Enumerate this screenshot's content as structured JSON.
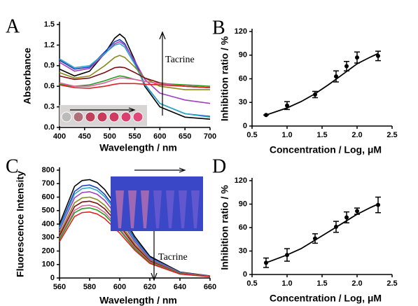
{
  "chart_data": [
    {
      "type": "line",
      "panel_label": "A",
      "xlabel": "Wavelength / nm",
      "ylabel": "Absorbance",
      "annotation": "Tacrine",
      "xlim": [
        400,
        700
      ],
      "xticks": [
        400,
        450,
        500,
        550,
        600,
        650,
        700
      ],
      "ylim": [
        0,
        1.5
      ],
      "yticks": [
        {
          "value": 0,
          "label": "0.0"
        },
        0.3,
        0.6,
        0.9,
        1.2,
        1.5
      ],
      "series": [
        {
          "color": "#000000",
          "x": [
            400,
            430,
            460,
            490,
            510,
            520,
            530,
            550,
            570,
            600,
            650,
            700
          ],
          "values": [
            0.85,
            0.75,
            0.82,
            1.08,
            1.3,
            1.36,
            1.3,
            0.98,
            0.6,
            0.3,
            0.15,
            0.12
          ]
        },
        {
          "color": "#1f3fbf",
          "x": [
            400,
            430,
            460,
            490,
            510,
            520,
            530,
            550,
            570,
            600,
            650,
            700
          ],
          "values": [
            0.98,
            0.85,
            0.88,
            1.1,
            1.25,
            1.28,
            1.22,
            0.95,
            0.63,
            0.35,
            0.2,
            0.16
          ]
        },
        {
          "color": "#a040c0",
          "x": [
            400,
            430,
            460,
            490,
            510,
            520,
            530,
            550,
            570,
            600,
            650,
            700
          ],
          "values": [
            0.95,
            0.82,
            0.86,
            1.07,
            1.22,
            1.25,
            1.2,
            0.97,
            0.7,
            0.5,
            0.4,
            0.35
          ]
        },
        {
          "color": "#2aa8c8",
          "x": [
            400,
            430,
            460,
            490,
            510,
            520,
            530,
            550,
            570,
            600,
            650,
            700
          ],
          "values": [
            1.0,
            0.87,
            0.9,
            1.08,
            1.2,
            1.22,
            1.17,
            0.92,
            0.62,
            0.35,
            0.2,
            0.15
          ]
        },
        {
          "color": "#8a8a20",
          "x": [
            400,
            430,
            460,
            490,
            510,
            520,
            530,
            550,
            570,
            600,
            650,
            700
          ],
          "values": [
            0.8,
            0.72,
            0.75,
            0.9,
            1.02,
            1.05,
            1.02,
            0.88,
            0.72,
            0.6,
            0.55,
            0.55
          ]
        },
        {
          "color": "#7a1010",
          "x": [
            400,
            430,
            460,
            490,
            510,
            520,
            530,
            550,
            570,
            600,
            650,
            700
          ],
          "values": [
            0.75,
            0.7,
            0.72,
            0.8,
            0.87,
            0.88,
            0.87,
            0.8,
            0.72,
            0.65,
            0.6,
            0.58
          ]
        },
        {
          "color": "#20a020",
          "x": [
            400,
            430,
            460,
            490,
            510,
            520,
            530,
            550,
            570,
            600,
            650,
            700
          ],
          "values": [
            0.63,
            0.6,
            0.62,
            0.68,
            0.73,
            0.75,
            0.74,
            0.7,
            0.67,
            0.64,
            0.62,
            0.6
          ]
        },
        {
          "color": "#e060a0",
          "x": [
            400,
            430,
            460,
            490,
            510,
            520,
            530,
            550,
            570,
            600,
            650,
            700
          ],
          "values": [
            0.65,
            0.6,
            0.6,
            0.65,
            0.7,
            0.72,
            0.72,
            0.7,
            0.67,
            0.64,
            0.6,
            0.58
          ]
        },
        {
          "color": "#e02020",
          "x": [
            400,
            430,
            460,
            490,
            510,
            520,
            530,
            550,
            570,
            600,
            650,
            700
          ],
          "values": [
            0.62,
            0.58,
            0.57,
            0.6,
            0.63,
            0.64,
            0.64,
            0.64,
            0.63,
            0.62,
            0.6,
            0.58
          ]
        }
      ]
    },
    {
      "type": "scatter",
      "panel_label": "B",
      "xlabel": "Concentration / Log, μM",
      "ylabel": "Inhibition ratio / %",
      "xlim": [
        0.5,
        2.5
      ],
      "xticks": [
        0.5,
        {
          "value": 1,
          "label": "1.0"
        },
        1.5,
        {
          "value": 2,
          "label": "2.0"
        },
        2.5
      ],
      "ylim": [
        0,
        120
      ],
      "yticks": [
        0,
        30,
        60,
        90,
        120
      ],
      "color": "#000000",
      "x": [
        0.7,
        1.0,
        1.4,
        1.7,
        1.85,
        2.0,
        2.3
      ],
      "values": [
        14,
        26,
        40,
        63,
        76,
        87,
        89
      ],
      "errors": [
        0,
        5,
        4,
        7,
        6,
        7,
        6
      ],
      "fit": {
        "x": [
          0.7,
          1.0,
          1.2,
          1.4,
          1.6,
          1.8,
          2.0,
          2.2,
          2.3
        ],
        "values": [
          14,
          23,
          31,
          41,
          53,
          66,
          79,
          88,
          92
        ]
      }
    },
    {
      "type": "line",
      "panel_label": "C",
      "xlabel": "Wavelength / nm",
      "ylabel": "Fluorescence Intensity",
      "annotation": "Tacrine",
      "xlim": [
        560,
        660
      ],
      "xticks": [
        560,
        580,
        600,
        620,
        640,
        660
      ],
      "ylim": [
        0,
        800
      ],
      "yticks": [
        0,
        100,
        200,
        300,
        400,
        500,
        600,
        700,
        800
      ],
      "series": [
        {
          "color": "#000000",
          "x": [
            560,
            570,
            575,
            580,
            585,
            590,
            600,
            610,
            620,
            640,
            660
          ],
          "values": [
            400,
            680,
            723,
            730,
            708,
            657,
            496,
            307,
            161,
            44,
            15
          ]
        },
        {
          "color": "#1f3fbf",
          "x": [
            560,
            570,
            575,
            580,
            585,
            590,
            600,
            610,
            620,
            640,
            660
          ],
          "values": [
            380,
            642,
            683,
            690,
            669,
            621,
            469,
            290,
            152,
            41,
            14
          ]
        },
        {
          "color": "#2aa8c8",
          "x": [
            560,
            570,
            575,
            580,
            585,
            590,
            600,
            610,
            620,
            640,
            660
          ],
          "values": [
            369,
            623,
            663,
            670,
            650,
            603,
            456,
            281,
            147,
            40,
            13
          ]
        },
        {
          "color": "#a040c0",
          "x": [
            560,
            570,
            575,
            580,
            585,
            590,
            600,
            610,
            620,
            640,
            660
          ],
          "values": [
            352,
            595,
            634,
            640,
            621,
            576,
            435,
            269,
            141,
            38,
            13
          ]
        },
        {
          "color": "#8a8a20",
          "x": [
            560,
            570,
            575,
            580,
            585,
            590,
            600,
            610,
            620,
            640,
            660
          ],
          "values": [
            330,
            558,
            594,
            600,
            582,
            540,
            408,
            252,
            132,
            36,
            12
          ]
        },
        {
          "color": "#7a1010",
          "x": [
            560,
            570,
            575,
            580,
            585,
            590,
            600,
            610,
            620,
            640,
            660
          ],
          "values": [
            314,
            530,
            564,
            570,
            553,
            513,
            388,
            239,
            125,
            34,
            11
          ]
        },
        {
          "color": "#e060a0",
          "x": [
            560,
            570,
            575,
            580,
            585,
            590,
            600,
            610,
            620,
            640,
            660
          ],
          "values": [
            297,
            502,
            535,
            540,
            524,
            486,
            367,
            227,
            119,
            32,
            11
          ]
        },
        {
          "color": "#20a020",
          "x": [
            560,
            570,
            575,
            580,
            585,
            590,
            600,
            610,
            620,
            640,
            660
          ],
          "values": [
            286,
            484,
            515,
            520,
            504,
            468,
            354,
            218,
            114,
            31,
            10
          ]
        },
        {
          "color": "#e02020",
          "x": [
            560,
            570,
            575,
            580,
            585,
            590,
            600,
            610,
            620,
            640,
            660
          ],
          "values": [
            270,
            456,
            485,
            490,
            475,
            441,
            333,
            206,
            108,
            29,
            10
          ]
        }
      ]
    },
    {
      "type": "scatter",
      "panel_label": "D",
      "xlabel": "Concentration / Log, μM",
      "ylabel": "Inhibition ratio / %",
      "xlim": [
        0.5,
        2.5
      ],
      "xticks": [
        0.5,
        {
          "value": 1,
          "label": "1.0"
        },
        1.5,
        {
          "value": 2,
          "label": "2.0"
        },
        2.5
      ],
      "ylim": [
        0,
        120
      ],
      "yticks": [
        0,
        30,
        60,
        90,
        120
      ],
      "color": "#000000",
      "x": [
        0.7,
        1.0,
        1.4,
        1.7,
        1.85,
        2.0,
        2.3
      ],
      "values": [
        15,
        25,
        46,
        61,
        73,
        81,
        89
      ],
      "errors": [
        6,
        8,
        6,
        7,
        7,
        4,
        10
      ],
      "fit": {
        "x": [
          0.7,
          1.0,
          1.2,
          1.4,
          1.6,
          1.8,
          2.0,
          2.2,
          2.3
        ],
        "values": [
          15,
          25,
          33,
          44,
          55,
          66,
          77,
          86,
          90
        ]
      }
    }
  ]
}
